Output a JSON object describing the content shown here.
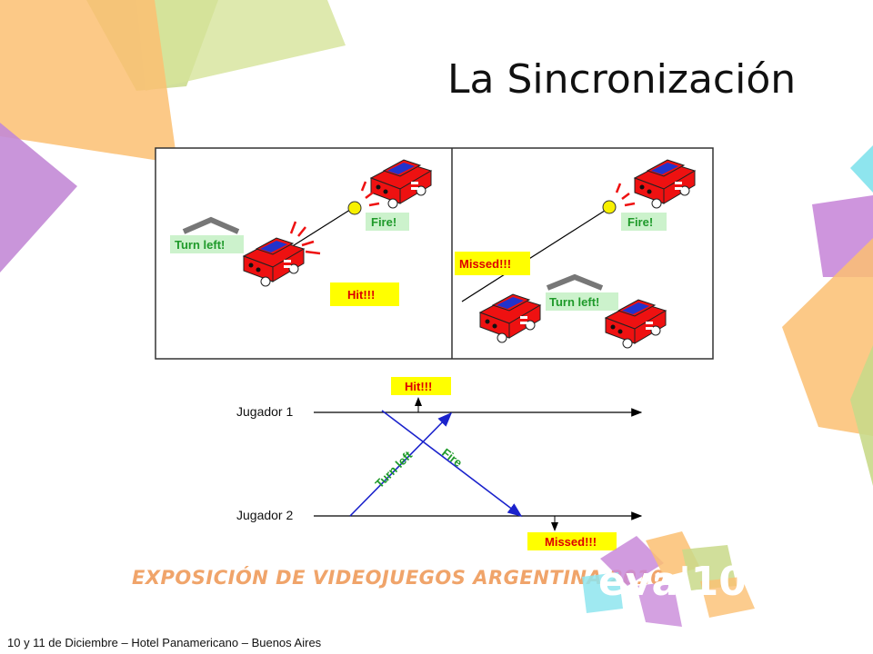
{
  "slide": {
    "title": "La Sincronización",
    "footer": "10 y 11 de Diciembre – Hotel Panamericano – Buenos Aires",
    "expo_banner": "EXPOSICIÓN DE VIDEOJUEGOS ARGENTINA 2010",
    "logo_text": "eva'10"
  },
  "panel_left": {
    "turn_label": "Turn left!",
    "fire_label": "Fire!",
    "result_label": "Hit!!!"
  },
  "panel_right": {
    "turn_label": "Turn left!",
    "fire_label": "Fire!",
    "result_label": "Missed!!!"
  },
  "timeline": {
    "player1": "Jugador 1",
    "player2": "Jugador 2",
    "message_up": "Turn left",
    "message_down": "Fire",
    "hit_label": "Hit!!!",
    "miss_label": "Missed!!!"
  },
  "colors": {
    "car": "#ee1111",
    "car_glass": "#2233cc",
    "label_green": "#ccf2cc",
    "label_yellow": "#ffff00",
    "arrow_blue": "#1a22cc",
    "arrow_green": "#1f9a2a",
    "text_green": "#1f9a2a",
    "text_red": "#dd0000"
  }
}
